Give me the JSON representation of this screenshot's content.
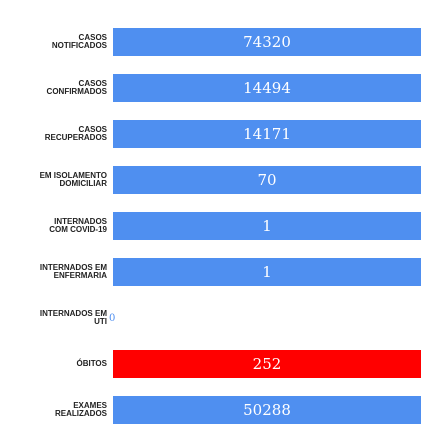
{
  "colors": {
    "bar_blue": "#4f8ff0",
    "bar_red": "#ff0000",
    "value_text": "#ffffff",
    "label_text": "#222222"
  },
  "chart_data": {
    "type": "bar",
    "orientation": "horizontal",
    "categories": [
      "CASOS NOTIFICADOS",
      "CASOS CONFIRMADOS",
      "CASOS RECUPERADOS",
      "EM ISOLAMENTO DOMICILIAR",
      "INTERNADOS COM COVID-19",
      "INTERNADOS EM ENFERMARIA",
      "INTERNADOS EM UTI",
      "ÓBITOS",
      "EXAMES REALIZADOS"
    ],
    "values": [
      74320,
      14494,
      14171,
      70,
      1,
      1,
      0,
      252,
      50288
    ],
    "data_labels": [
      "74320",
      "14494",
      "14171",
      "70",
      "1",
      "1",
      "0",
      "252",
      "50288"
    ],
    "bar_colors": [
      "#4f8ff0",
      "#4f8ff0",
      "#4f8ff0",
      "#4f8ff0",
      "#4f8ff0",
      "#4f8ff0",
      "#4f8ff0",
      "#ff0000",
      "#4f8ff0"
    ],
    "labels": [
      {
        "line1": "CASOS",
        "line2": "NOTIFICADOS"
      },
      {
        "line1": "CASOS",
        "line2": "CONFIRMADOS"
      },
      {
        "line1": "CASOS",
        "line2": "RECUPERADOS"
      },
      {
        "line1": "EM ISOLAMENTO",
        "line2": "DOMICILIAR"
      },
      {
        "line1": "INTERNADOS",
        "line2": "COM COVID-19"
      },
      {
        "line1": "INTERNADOS EM",
        "line2": "ENFERMARIA"
      },
      {
        "line1": "INTERNADOS EM",
        "line2": "UTI"
      },
      {
        "line1": "ÓBITOS",
        "line2": ""
      },
      {
        "line1": "EXAMES",
        "line2": "REALIZADOS"
      }
    ],
    "title": "",
    "xlabel": "",
    "ylabel": "",
    "grid": false,
    "legend": "none"
  }
}
